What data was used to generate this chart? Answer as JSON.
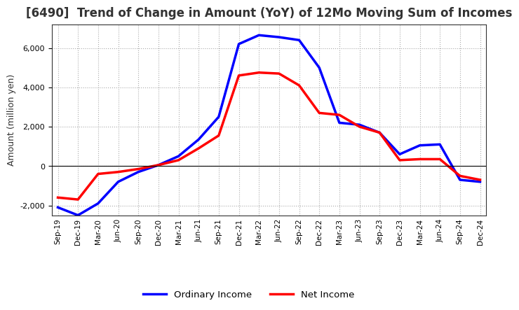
{
  "title": "[6490]  Trend of Change in Amount (YoY) of 12Mo Moving Sum of Incomes",
  "ylabel": "Amount (million yen)",
  "ylim": [
    -2500,
    7200
  ],
  "yticks": [
    -2000,
    0,
    2000,
    4000,
    6000
  ],
  "x_labels": [
    "Sep-19",
    "Dec-19",
    "Mar-20",
    "Jun-20",
    "Sep-20",
    "Dec-20",
    "Mar-21",
    "Jun-21",
    "Sep-21",
    "Dec-21",
    "Mar-22",
    "Jun-22",
    "Sep-22",
    "Dec-22",
    "Mar-23",
    "Jun-23",
    "Sep-23",
    "Dec-23",
    "Mar-24",
    "Jun-24",
    "Sep-24",
    "Dec-24"
  ],
  "ordinary_income": [
    -2100,
    -2500,
    -1900,
    -800,
    -300,
    50,
    500,
    1350,
    2500,
    6200,
    6650,
    6550,
    6400,
    5000,
    2200,
    2100,
    1700,
    600,
    1050,
    1100,
    -700,
    -800
  ],
  "net_income": [
    -1600,
    -1700,
    -400,
    -300,
    -150,
    50,
    300,
    900,
    1550,
    4600,
    4750,
    4700,
    4100,
    2700,
    2600,
    2000,
    1700,
    300,
    350,
    350,
    -500,
    -700
  ],
  "ordinary_color": "#0000ff",
  "net_color": "#ff0000",
  "bg_color": "#ffffff",
  "grid_color": "#aaaaaa",
  "title_color": "#333333",
  "legend_labels": [
    "Ordinary Income",
    "Net Income"
  ]
}
